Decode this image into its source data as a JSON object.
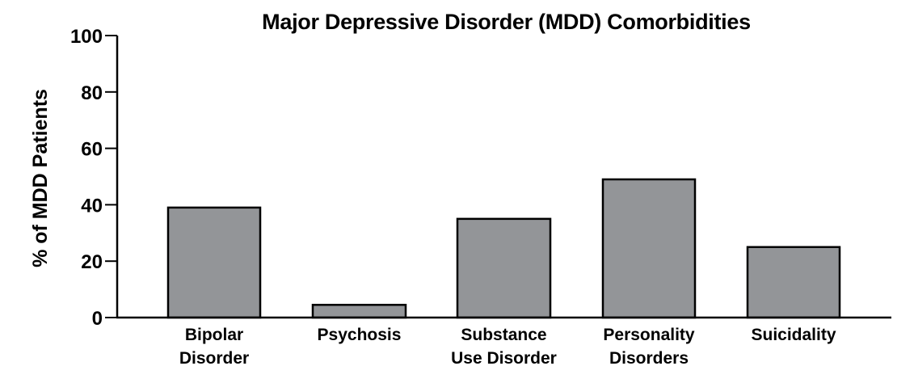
{
  "chart_data": {
    "type": "bar",
    "title": "Major Depressive Disorder (MDD) Comorbidities",
    "xlabel": "",
    "ylabel": "% of MDD Patients",
    "ylim": [
      0,
      100
    ],
    "yticks": [
      0,
      20,
      40,
      60,
      80,
      100
    ],
    "grid": false,
    "legend": null,
    "categories": [
      "Bipolar Disorder",
      "Psychosis",
      "Substance Use Disorder",
      "Personality Disorders",
      "Suicidality"
    ],
    "category_lines": [
      [
        "Bipolar",
        "Disorder"
      ],
      [
        "Psychosis"
      ],
      [
        "Substance",
        "Use Disorder"
      ],
      [
        "Personality",
        "Disorders"
      ],
      [
        "Suicidality"
      ]
    ],
    "values": [
      39,
      4.5,
      35,
      49,
      25
    ],
    "bar_color": "#939598",
    "edge_color": "#000000"
  }
}
